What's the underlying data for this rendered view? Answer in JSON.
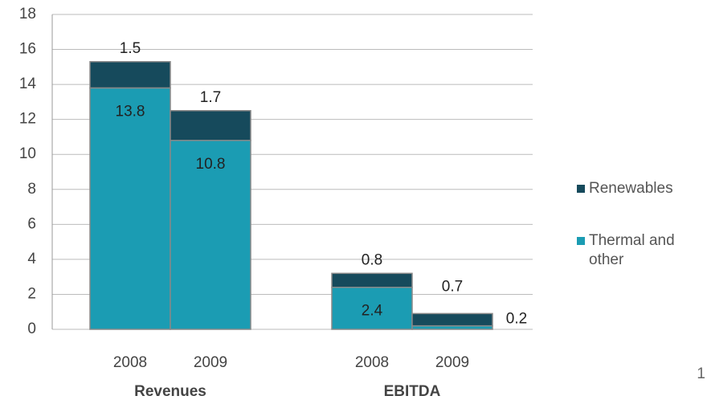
{
  "chart_data": {
    "type": "stacked_bar",
    "categories": [
      "2008",
      "2009",
      "2008",
      "2009"
    ],
    "groups": [
      "Revenues",
      "EBITDA"
    ],
    "series": [
      {
        "name": "Thermal and other",
        "color": "#1b9cb3",
        "values": [
          13.8,
          10.8,
          2.4,
          0.2
        ]
      },
      {
        "name": "Renewables",
        "color": "#164a5c",
        "values": [
          1.5,
          1.7,
          0.8,
          0.7
        ]
      }
    ],
    "ylim": [
      0,
      18
    ],
    "yticks": [
      0,
      2,
      4,
      6,
      8,
      10,
      12,
      14,
      16,
      18
    ],
    "grid": true,
    "legend": "right"
  },
  "page_number": "1"
}
